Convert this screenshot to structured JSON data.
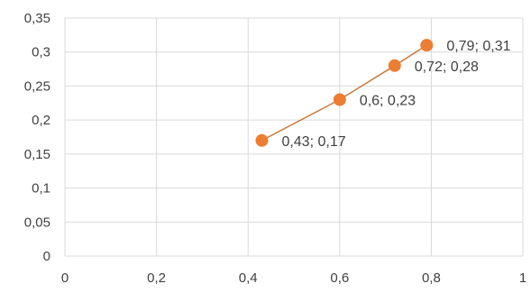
{
  "chart_data": {
    "type": "scatter",
    "title": "",
    "xlabel": "",
    "ylabel": "",
    "xlim": [
      0,
      1
    ],
    "ylim": [
      0,
      0.35
    ],
    "x_ticks": [
      "0",
      "0,2",
      "0,4",
      "0,6",
      "0,8",
      "1"
    ],
    "x_tick_values": [
      0,
      0.2,
      0.4,
      0.6,
      0.8,
      1
    ],
    "y_ticks": [
      "0",
      "0,05",
      "0,1",
      "0,15",
      "0,2",
      "0,25",
      "0,3",
      "0,35"
    ],
    "y_tick_values": [
      0,
      0.05,
      0.1,
      0.15,
      0.2,
      0.25,
      0.3,
      0.35
    ],
    "grid": true,
    "legend": "none",
    "series": [
      {
        "points": [
          {
            "x": 0.43,
            "y": 0.17,
            "label": "0,43; 0,17"
          },
          {
            "x": 0.6,
            "y": 0.23,
            "label": "0,6; 0,23"
          },
          {
            "x": 0.72,
            "y": 0.28,
            "label": "0,72; 0,28"
          },
          {
            "x": 0.79,
            "y": 0.31,
            "label": "0,79; 0,31"
          }
        ],
        "line_color": "#c97b3f",
        "marker_color": "#ed7d31"
      }
    ]
  }
}
